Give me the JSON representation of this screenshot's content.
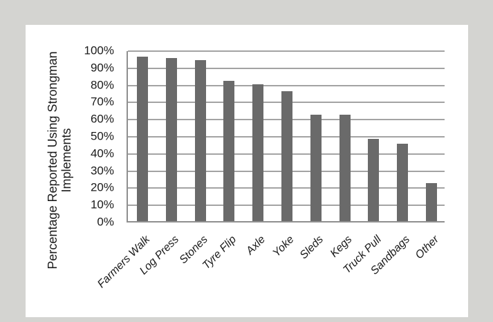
{
  "page": {
    "background": "#d4d4d1",
    "panel_background": "#ffffff"
  },
  "chart_data": {
    "type": "bar",
    "title": "",
    "ylabel": "Percentage Reported Using Strongman Implements",
    "ylabel_lines": [
      "Percentage Reported Using Strongman",
      "Implements"
    ],
    "xlabel": "",
    "categories": [
      "Farmers Walk",
      "Log Press",
      "Stones",
      "Tyre Flip",
      "Axle",
      "Yoke",
      "Sleds",
      "Kegs",
      "Truck Pull",
      "Sandbags",
      "Other"
    ],
    "values": [
      96,
      95,
      94,
      82,
      80,
      76,
      62,
      62,
      48,
      45,
      22
    ],
    "y_ticks": [
      "100%",
      "90%",
      "80%",
      "70%",
      "60%",
      "50%",
      "40%",
      "30%",
      "20%",
      "10%",
      "0%"
    ],
    "ylim": [
      0,
      100
    ],
    "y_tick_step": 10,
    "grid": "horizontal-only",
    "legend": "none",
    "bar_color": "#6a6a6a",
    "gridline_color": "#a3a3a3",
    "axis_line_color": "#8f8f8f",
    "text_color": "#1a1a1a"
  }
}
